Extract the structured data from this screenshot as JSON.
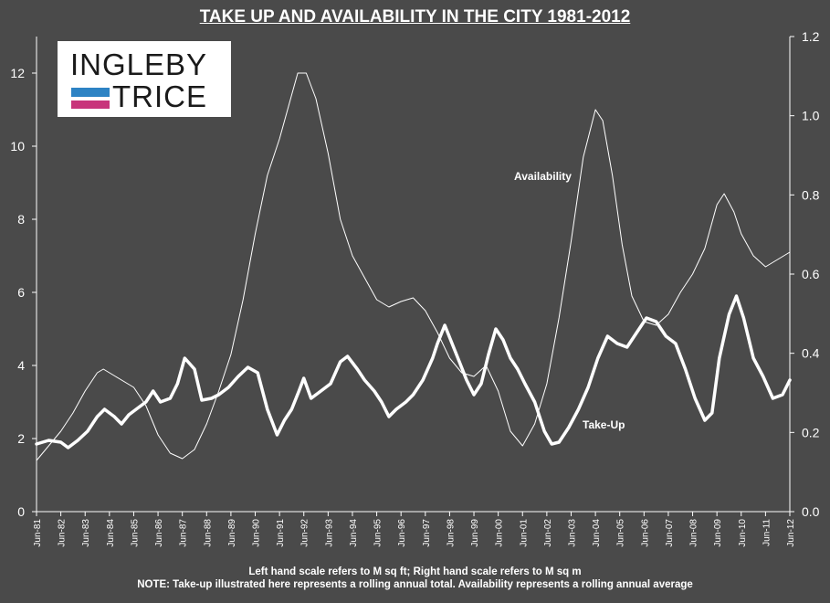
{
  "title": "TAKE UP AND AVAILABILITY IN THE CITY 1981-2012",
  "logo": {
    "line1": "INGLEBY",
    "line2": "TRICE",
    "colors": [
      "#2d83c4",
      "#c8357b"
    ]
  },
  "notes": [
    "Left hand scale refers to M sq ft; Right hand scale refers to M sq m",
    "NOTE: Take-up illustrated here represents a rolling annual total. Availability represents a rolling annual average"
  ],
  "chart_data": {
    "type": "line",
    "title": "TAKE UP AND AVAILABILITY IN THE CITY 1981-2012",
    "x_tick_labels": [
      "Jun-81",
      "Jun-82",
      "Jun-83",
      "Jun-84",
      "Jun-85",
      "Jun-86",
      "Jun-87",
      "Jun-88",
      "Jun-89",
      "Jun-90",
      "Jun-91",
      "Jun-92",
      "Jun-93",
      "Jun-94",
      "Jun-95",
      "Jun-96",
      "Jun-97",
      "Jun-98",
      "Jun-99",
      "Jun-00",
      "Jun-01",
      "Jun-02",
      "Jun-03",
      "Jun-04",
      "Jun-05",
      "Jun-06",
      "Jun-07",
      "Jun-08",
      "Jun-09",
      "Jun-10",
      "Jun-11",
      "Jun-12"
    ],
    "x_range": [
      1981.5,
      2012.5
    ],
    "y_left": {
      "ticks": [
        "0",
        "2",
        "4",
        "6",
        "8",
        "10",
        "12"
      ],
      "range": [
        0,
        13
      ]
    },
    "y_right": {
      "ticks": [
        "0.0",
        "0.2",
        "0.4",
        "0.6",
        "0.8",
        "1.0",
        "1.2"
      ],
      "range": [
        0,
        1.2
      ]
    },
    "grid": false,
    "legend": "none",
    "series": [
      {
        "name": "Availability",
        "axis": "left",
        "color": "#ffffff",
        "style": "thin",
        "points": [
          [
            1981.5,
            1.4
          ],
          [
            1982.0,
            1.8
          ],
          [
            1982.5,
            2.2
          ],
          [
            1983.0,
            2.7
          ],
          [
            1983.5,
            3.3
          ],
          [
            1984.0,
            3.8
          ],
          [
            1984.25,
            3.9
          ],
          [
            1984.75,
            3.7
          ],
          [
            1985.5,
            3.4
          ],
          [
            1986.0,
            2.9
          ],
          [
            1986.5,
            2.1
          ],
          [
            1987.0,
            1.6
          ],
          [
            1987.5,
            1.45
          ],
          [
            1988.0,
            1.7
          ],
          [
            1988.5,
            2.4
          ],
          [
            1989.0,
            3.3
          ],
          [
            1989.5,
            4.3
          ],
          [
            1990.0,
            5.8
          ],
          [
            1990.5,
            7.6
          ],
          [
            1991.0,
            9.2
          ],
          [
            1991.5,
            10.2
          ],
          [
            1992.0,
            11.4
          ],
          [
            1992.25,
            12.0
          ],
          [
            1992.6,
            12.0
          ],
          [
            1993.0,
            11.3
          ],
          [
            1993.5,
            9.8
          ],
          [
            1994.0,
            8.0
          ],
          [
            1994.5,
            7.0
          ],
          [
            1995.0,
            6.4
          ],
          [
            1995.5,
            5.8
          ],
          [
            1996.0,
            5.6
          ],
          [
            1996.5,
            5.75
          ],
          [
            1997.0,
            5.85
          ],
          [
            1997.5,
            5.5
          ],
          [
            1998.0,
            4.9
          ],
          [
            1998.5,
            4.2
          ],
          [
            1999.0,
            3.8
          ],
          [
            1999.5,
            3.7
          ],
          [
            2000.0,
            4.0
          ],
          [
            2000.5,
            3.3
          ],
          [
            2001.0,
            2.2
          ],
          [
            2001.5,
            1.8
          ],
          [
            2002.0,
            2.4
          ],
          [
            2002.5,
            3.5
          ],
          [
            2003.0,
            5.3
          ],
          [
            2003.5,
            7.4
          ],
          [
            2004.0,
            9.7
          ],
          [
            2004.5,
            11.0
          ],
          [
            2004.8,
            10.7
          ],
          [
            2005.2,
            9.2
          ],
          [
            2005.6,
            7.3
          ],
          [
            2006.0,
            5.9
          ],
          [
            2006.5,
            5.2
          ],
          [
            2007.0,
            5.1
          ],
          [
            2007.5,
            5.4
          ],
          [
            2008.0,
            6.0
          ],
          [
            2008.5,
            6.5
          ],
          [
            2009.0,
            7.2
          ],
          [
            2009.5,
            8.4
          ],
          [
            2009.8,
            8.7
          ],
          [
            2010.2,
            8.2
          ],
          [
            2010.5,
            7.6
          ],
          [
            2011.0,
            7.0
          ],
          [
            2011.5,
            6.7
          ],
          [
            2012.0,
            6.9
          ],
          [
            2012.5,
            7.1
          ]
        ]
      },
      {
        "name": "Take-Up",
        "axis": "left",
        "color": "#ffffff",
        "style": "thick",
        "points": [
          [
            1981.5,
            1.85
          ],
          [
            1982.0,
            1.95
          ],
          [
            1982.5,
            1.9
          ],
          [
            1982.8,
            1.75
          ],
          [
            1983.2,
            1.95
          ],
          [
            1983.6,
            2.2
          ],
          [
            1984.0,
            2.6
          ],
          [
            1984.3,
            2.8
          ],
          [
            1984.7,
            2.6
          ],
          [
            1985.0,
            2.4
          ],
          [
            1985.3,
            2.65
          ],
          [
            1985.6,
            2.8
          ],
          [
            1986.0,
            3.0
          ],
          [
            1986.3,
            3.3
          ],
          [
            1986.6,
            3.0
          ],
          [
            1987.0,
            3.1
          ],
          [
            1987.3,
            3.5
          ],
          [
            1987.6,
            4.2
          ],
          [
            1988.0,
            3.9
          ],
          [
            1988.3,
            3.05
          ],
          [
            1988.7,
            3.1
          ],
          [
            1989.0,
            3.2
          ],
          [
            1989.4,
            3.4
          ],
          [
            1989.8,
            3.7
          ],
          [
            1990.2,
            3.95
          ],
          [
            1990.6,
            3.8
          ],
          [
            1991.0,
            2.8
          ],
          [
            1991.4,
            2.1
          ],
          [
            1991.7,
            2.5
          ],
          [
            1992.0,
            2.8
          ],
          [
            1992.3,
            3.3
          ],
          [
            1992.5,
            3.65
          ],
          [
            1992.8,
            3.1
          ],
          [
            1993.2,
            3.3
          ],
          [
            1993.6,
            3.5
          ],
          [
            1994.0,
            4.1
          ],
          [
            1994.3,
            4.25
          ],
          [
            1994.7,
            3.9
          ],
          [
            1995.0,
            3.6
          ],
          [
            1995.4,
            3.3
          ],
          [
            1995.7,
            3.0
          ],
          [
            1996.0,
            2.6
          ],
          [
            1996.3,
            2.8
          ],
          [
            1996.7,
            3.0
          ],
          [
            1997.0,
            3.2
          ],
          [
            1997.4,
            3.6
          ],
          [
            1997.8,
            4.2
          ],
          [
            1998.0,
            4.6
          ],
          [
            1998.3,
            5.1
          ],
          [
            1998.6,
            4.6
          ],
          [
            1998.9,
            4.1
          ],
          [
            1999.2,
            3.6
          ],
          [
            1999.5,
            3.2
          ],
          [
            1999.8,
            3.5
          ],
          [
            2000.1,
            4.3
          ],
          [
            2000.4,
            5.0
          ],
          [
            2000.7,
            4.7
          ],
          [
            2001.0,
            4.2
          ],
          [
            2001.3,
            3.9
          ],
          [
            2001.6,
            3.5
          ],
          [
            2002.0,
            3.0
          ],
          [
            2002.4,
            2.2
          ],
          [
            2002.7,
            1.85
          ],
          [
            2003.0,
            1.9
          ],
          [
            2003.4,
            2.3
          ],
          [
            2003.8,
            2.8
          ],
          [
            2004.2,
            3.4
          ],
          [
            2004.6,
            4.2
          ],
          [
            2005.0,
            4.8
          ],
          [
            2005.4,
            4.6
          ],
          [
            2005.8,
            4.5
          ],
          [
            2006.2,
            4.9
          ],
          [
            2006.6,
            5.3
          ],
          [
            2007.0,
            5.2
          ],
          [
            2007.4,
            4.8
          ],
          [
            2007.8,
            4.6
          ],
          [
            2008.2,
            3.9
          ],
          [
            2008.6,
            3.1
          ],
          [
            2009.0,
            2.5
          ],
          [
            2009.3,
            2.7
          ],
          [
            2009.6,
            4.2
          ],
          [
            2010.0,
            5.4
          ],
          [
            2010.3,
            5.9
          ],
          [
            2010.6,
            5.3
          ],
          [
            2011.0,
            4.2
          ],
          [
            2011.4,
            3.7
          ],
          [
            2011.8,
            3.1
          ],
          [
            2012.2,
            3.2
          ],
          [
            2012.5,
            3.6
          ]
        ]
      }
    ],
    "annotations": [
      {
        "text": "Availability",
        "series": "Availability"
      },
      {
        "text": "Take-Up",
        "series": "Take-Up"
      }
    ]
  }
}
